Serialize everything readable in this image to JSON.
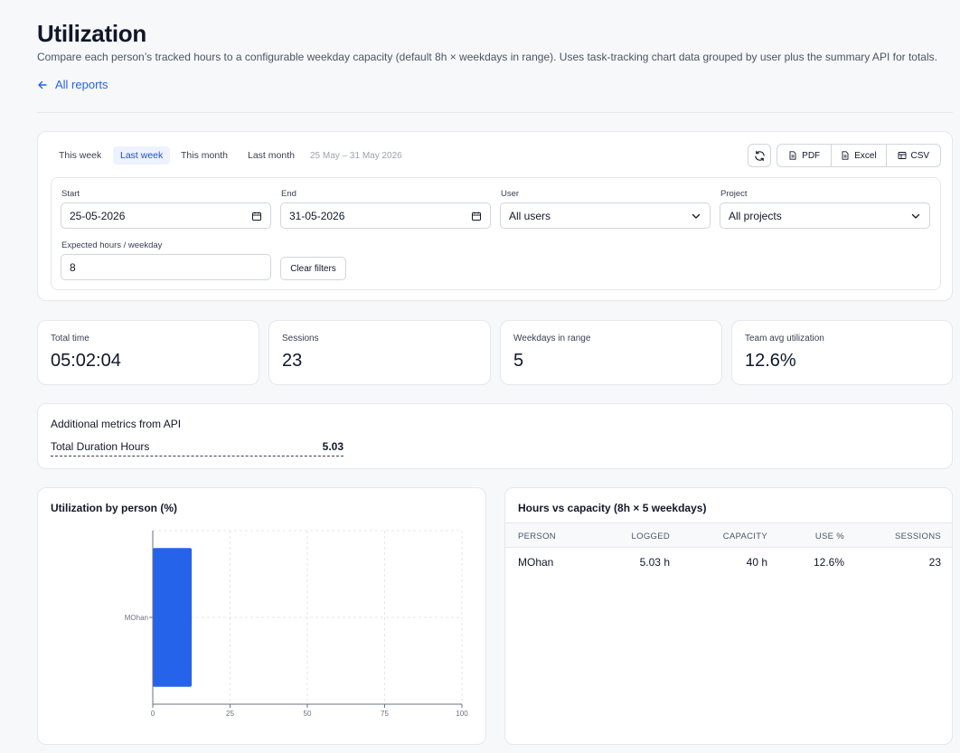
{
  "header": {
    "title": "Utilization",
    "description": "Compare each person’s tracked hours to a configurable weekday capacity (default 8h × weekdays in range). Uses task-tracking chart data grouped by user plus the summary API for totals.",
    "back_label": "All reports"
  },
  "filters": {
    "ranges": [
      "This week",
      "Last week",
      "This month",
      "Last month"
    ],
    "active_range": "Last week",
    "range_display": "25 May – 31 May 2026",
    "export": {
      "pdf": "PDF",
      "excel": "Excel",
      "csv": "CSV"
    },
    "start": {
      "label": "Start",
      "value": "25-05-2026"
    },
    "end": {
      "label": "End",
      "value": "31-05-2026"
    },
    "user": {
      "label": "User",
      "value": "All users"
    },
    "project": {
      "label": "Project",
      "value": "All projects"
    },
    "expected": {
      "label": "Expected hours / weekday",
      "value": "8"
    },
    "clear_label": "Clear filters"
  },
  "stats": [
    {
      "label": "Total time",
      "value": "05:02:04"
    },
    {
      "label": "Sessions",
      "value": "23"
    },
    {
      "label": "Weekdays in range",
      "value": "5"
    },
    {
      "label": "Team avg utilization",
      "value": "12.6%"
    }
  ],
  "metrics": {
    "title": "Additional metrics from API",
    "rows": [
      {
        "label": "Total Duration Hours",
        "value": "5.03"
      }
    ]
  },
  "chart": {
    "title": "Utilization by person (%)"
  },
  "chart_data": {
    "type": "bar",
    "orientation": "horizontal",
    "categories": [
      "MOhan"
    ],
    "values": [
      12.6
    ],
    "xlim": [
      0,
      100
    ],
    "xticks": [
      0,
      25,
      50,
      75,
      100
    ],
    "grid": true,
    "color": "#2563eb"
  },
  "table": {
    "title": "Hours vs capacity (8h × 5 weekdays)",
    "columns": [
      "PERSON",
      "LOGGED",
      "CAPACITY",
      "USE %",
      "SESSIONS"
    ],
    "rows": [
      {
        "person": "MOhan",
        "logged": "5.03 h",
        "capacity": "40 h",
        "use": "12.6%",
        "sessions": "23"
      }
    ]
  }
}
